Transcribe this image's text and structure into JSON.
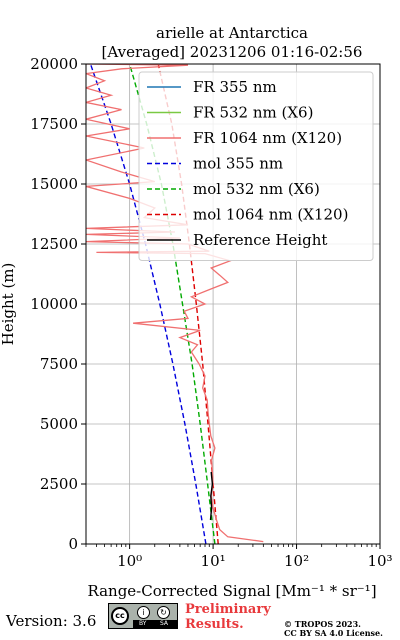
{
  "chart_data": {
    "type": "line",
    "title_line1": "arielle at Antarctica",
    "title_line2": "[Averaged] 20231206 01:16-02:56",
    "xlabel": "Range-Corrected Signal [Mm⁻¹ * sr⁻¹]",
    "ylabel": "Height (m)",
    "xscale": "log",
    "xlim": [
      0.3,
      1000
    ],
    "ylim": [
      0,
      20000
    ],
    "x_ticks": [
      {
        "value": 1,
        "label": "10⁰"
      },
      {
        "value": 10,
        "label": "10¹"
      },
      {
        "value": 100,
        "label": "10²"
      },
      {
        "value": 1000,
        "label": "10³"
      }
    ],
    "y_ticks": [
      0,
      2500,
      5000,
      7500,
      10000,
      12500,
      15000,
      17500,
      20000
    ],
    "grid": true,
    "legend_position": "upper-right",
    "legend": [
      {
        "label": "FR 355 nm",
        "color": "#1f77b4",
        "style": "solid"
      },
      {
        "label": "FR 532 nm (X6)",
        "color": "#7ac943",
        "style": "solid"
      },
      {
        "label": "FR 1064 nm (X120)",
        "color": "#f07070",
        "style": "solid"
      },
      {
        "label": "mol 355 nm",
        "color": "#0000dd",
        "style": "dashed"
      },
      {
        "label": "mol 532 nm (X6)",
        "color": "#00aa00",
        "style": "dashed"
      },
      {
        "label": "mol 1064 nm (X120)",
        "color": "#dd0000",
        "style": "dashed"
      },
      {
        "label": "Reference Height",
        "color": "#000000",
        "style": "solid"
      }
    ],
    "series": [
      {
        "name": "mol 355 nm",
        "color": "#0000dd",
        "dash": "5,3",
        "points": [
          [
            8.2,
            0
          ],
          [
            6.2,
            2500
          ],
          [
            4.6,
            5000
          ],
          [
            3.3,
            7500
          ],
          [
            2.3,
            10000
          ],
          [
            1.55,
            12500
          ],
          [
            1.0,
            15000
          ],
          [
            0.6,
            17500
          ],
          [
            0.34,
            20000
          ]
        ]
      },
      {
        "name": "mol 532 nm (X6)",
        "color": "#00aa00",
        "dash": "5,3",
        "points": [
          [
            10.5,
            0
          ],
          [
            8.6,
            2500
          ],
          [
            7.0,
            5000
          ],
          [
            5.6,
            7500
          ],
          [
            4.3,
            10000
          ],
          [
            3.3,
            12500
          ],
          [
            2.4,
            15000
          ],
          [
            1.6,
            17500
          ],
          [
            1.0,
            20000
          ]
        ]
      },
      {
        "name": "mol 1064 nm (X120)",
        "color": "#dd0000",
        "dash": "5,3",
        "points": [
          [
            11.5,
            0
          ],
          [
            10.0,
            2500
          ],
          [
            8.7,
            5000
          ],
          [
            7.5,
            7500
          ],
          [
            6.3,
            10000
          ],
          [
            5.2,
            12500
          ],
          [
            4.2,
            15000
          ],
          [
            3.2,
            17500
          ],
          [
            2.2,
            20000
          ]
        ]
      },
      {
        "name": "FR 1064 nm (X120)",
        "color": "#f07070",
        "dash": "",
        "points": [
          [
            40,
            100
          ],
          [
            15,
            300
          ],
          [
            12,
            600
          ],
          [
            11,
            1000
          ],
          [
            10,
            1500
          ],
          [
            9.5,
            2000
          ],
          [
            10,
            2500
          ],
          [
            9.8,
            3000
          ],
          [
            9.6,
            3500
          ],
          [
            10.5,
            4000
          ],
          [
            9.4,
            4500
          ],
          [
            9.0,
            5000
          ],
          [
            8.7,
            5500
          ],
          [
            8.5,
            6000
          ],
          [
            7.5,
            6500
          ],
          [
            8.0,
            7000
          ],
          [
            6.8,
            7500
          ],
          [
            5.5,
            8000
          ],
          [
            6.5,
            8300
          ],
          [
            4.0,
            8600
          ],
          [
            7.0,
            8900
          ],
          [
            1.1,
            9200
          ],
          [
            5.0,
            9400
          ],
          [
            4.5,
            9700
          ],
          [
            8.0,
            10000
          ],
          [
            5.5,
            10300
          ],
          [
            9.0,
            10600
          ],
          [
            15,
            10900
          ],
          [
            12,
            11200
          ],
          [
            9.5,
            11500
          ],
          [
            16,
            11800
          ],
          [
            8.0,
            12100
          ],
          [
            0.4,
            12150
          ],
          [
            9.0,
            12200
          ],
          [
            5.0,
            12500
          ],
          [
            0.3,
            12600
          ],
          [
            4.0,
            12750
          ],
          [
            0.3,
            12900
          ],
          [
            3.5,
            13000
          ],
          [
            0.3,
            13150
          ],
          [
            5.0,
            13300
          ],
          [
            1.5,
            13600
          ],
          [
            2.0,
            14000
          ],
          [
            1.0,
            14400
          ],
          [
            0.3,
            14900
          ],
          [
            2.0,
            15100
          ],
          [
            0.8,
            15500
          ],
          [
            0.3,
            16000
          ],
          [
            1.5,
            16500
          ],
          [
            0.3,
            17000
          ],
          [
            1.0,
            17300
          ],
          [
            0.3,
            17700
          ],
          [
            0.8,
            18100
          ],
          [
            0.3,
            18400
          ],
          [
            0.6,
            18700
          ],
          [
            0.3,
            19000
          ],
          [
            0.5,
            19300
          ],
          [
            0.3,
            19600
          ],
          [
            0.8,
            19800
          ],
          [
            5.0,
            19950
          ],
          [
            0.3,
            20000
          ]
        ]
      },
      {
        "name": "Reference Height",
        "color": "#000000",
        "dash": "",
        "points": [
          [
            9.3,
            1000
          ],
          [
            9.6,
            1500
          ],
          [
            9.4,
            2000
          ],
          [
            9.8,
            2500
          ],
          [
            9.5,
            3000
          ]
        ]
      }
    ]
  },
  "footer": {
    "version": "Version: 3.6",
    "cc_logo": "cc",
    "cc_by": "BY",
    "cc_sa": "SA",
    "preliminary_line1": "Preliminary",
    "preliminary_line2": "Results.",
    "copyright_line1": "© TROPOS 2023.",
    "copyright_line2": "CC BY SA 4.0 License."
  }
}
